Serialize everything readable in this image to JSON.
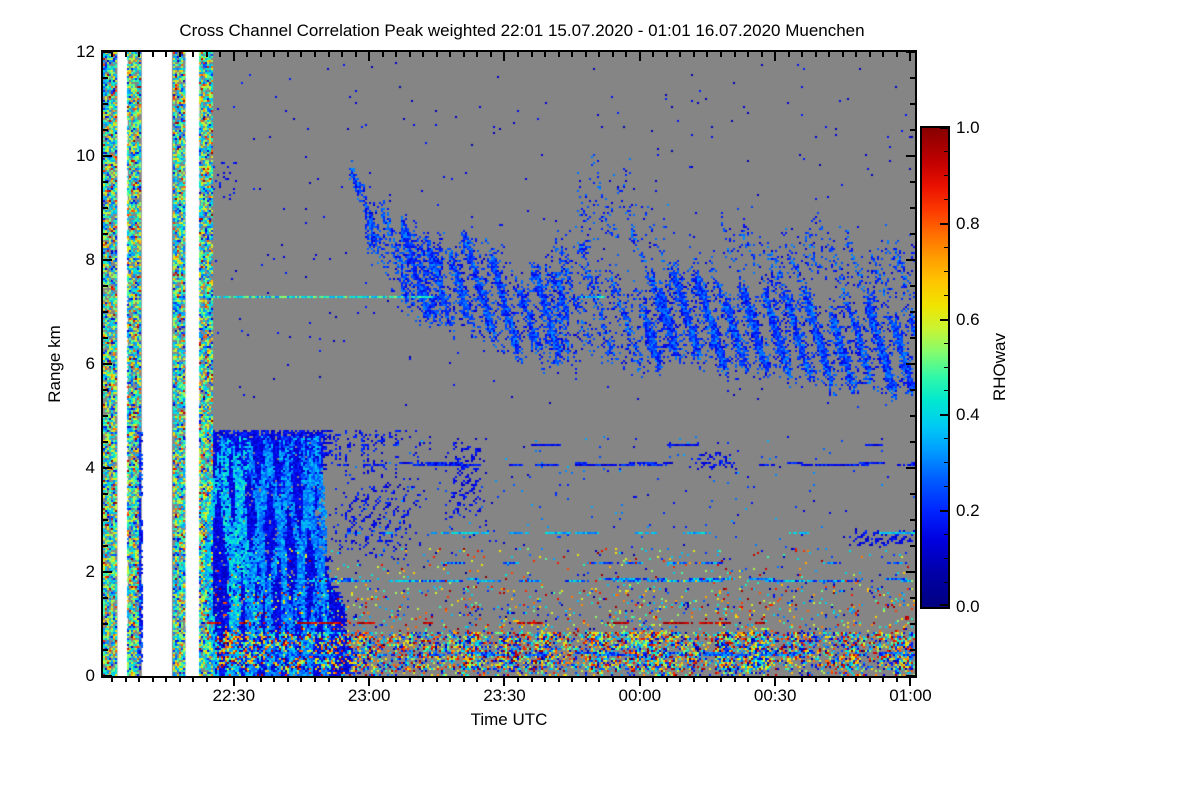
{
  "chart_data": {
    "type": "heatmap",
    "title": "Cross Channel Correlation Peak weighted",
    "time_range": "22:01 15.07.2020 - 01:01 16.07.2020",
    "station": "Muenchen",
    "title_full": "Cross Channel Correlation Peak weighted   22:01 15.07.2020 - 01:01 16.07.2020 Muenchen",
    "xlabel": "Time UTC",
    "ylabel": "Range km",
    "x_axis": {
      "start_minutes_after_2200": 1,
      "end_minutes_after_2200": 181,
      "major_ticks": [
        {
          "label": "22:30",
          "t": 30
        },
        {
          "label": "23:00",
          "t": 60
        },
        {
          "label": "23:30",
          "t": 90
        },
        {
          "label": "00:00",
          "t": 120
        },
        {
          "label": "00:30",
          "t": 150
        },
        {
          "label": "01:00",
          "t": 180
        }
      ],
      "minor_step_minutes": 3
    },
    "y_axis": {
      "range_km": [
        0,
        12
      ],
      "major_ticks": [
        {
          "label": "0",
          "km": 0
        },
        {
          "label": "2",
          "km": 2
        },
        {
          "label": "4",
          "km": 4
        },
        {
          "label": "6",
          "km": 6
        },
        {
          "label": "8",
          "km": 8
        },
        {
          "label": "10",
          "km": 10
        },
        {
          "label": "12",
          "km": 12
        }
      ],
      "minor_step_km": 0.5
    },
    "colorbar": {
      "label": "RHOwav",
      "range": [
        0,
        1
      ],
      "major_ticks": [
        {
          "label": "0.0",
          "v": 0.0
        },
        {
          "label": "0.2",
          "v": 0.2
        },
        {
          "label": "0.4",
          "v": 0.4
        },
        {
          "label": "0.6",
          "v": 0.6
        },
        {
          "label": "0.8",
          "v": 0.8
        },
        {
          "label": "1.0",
          "v": 1.0
        }
      ],
      "minor_step": 0.05,
      "colormap_stops": [
        [
          0.0,
          "#000080"
        ],
        [
          0.07,
          "#0000a8"
        ],
        [
          0.14,
          "#0000e0"
        ],
        [
          0.2,
          "#0024ff"
        ],
        [
          0.27,
          "#0060ff"
        ],
        [
          0.33,
          "#00a0ff"
        ],
        [
          0.38,
          "#00ccf2"
        ],
        [
          0.43,
          "#00e8d0"
        ],
        [
          0.48,
          "#30f8a8"
        ],
        [
          0.53,
          "#80fc70"
        ],
        [
          0.58,
          "#c8f434"
        ],
        [
          0.63,
          "#f0e400"
        ],
        [
          0.68,
          "#ffc400"
        ],
        [
          0.73,
          "#ff9c00"
        ],
        [
          0.78,
          "#ff6c00"
        ],
        [
          0.83,
          "#fc3800"
        ],
        [
          0.88,
          "#e81000"
        ],
        [
          0.93,
          "#c00000"
        ],
        [
          1.0,
          "#870000"
        ]
      ]
    },
    "no_data_color": "#858585",
    "gap_color": "#ffffff",
    "features": [
      {
        "kind": "stripe",
        "t0": 1.2,
        "t1": 4.2
      },
      {
        "kind": "gap",
        "t0": 4.2,
        "t1": 6.5
      },
      {
        "kind": "stripe",
        "t0": 6.5,
        "t1": 9.6
      },
      {
        "kind": "gap",
        "t0": 9.6,
        "t1": 16.3
      },
      {
        "kind": "stripe",
        "t0": 16.3,
        "t1": 19.3
      },
      {
        "kind": "gap",
        "t0": 19.3,
        "t1": 22.4
      },
      {
        "kind": "stripe",
        "t0": 22.4,
        "t1": 25.2
      },
      {
        "kind": "vline",
        "t": 8.8,
        "km0": 0.1,
        "km1": 4.7,
        "v0": 0.12,
        "v1": 0.3
      },
      {
        "kind": "speckle",
        "t0": 26,
        "t1": 181,
        "km0": 5.2,
        "km1": 11.8,
        "d": 0.004,
        "v0": 0.08,
        "v1": 0.2
      },
      {
        "kind": "speckle",
        "t0": 25.5,
        "t1": 30.5,
        "km0": 9.2,
        "km1": 9.9,
        "d": 0.09,
        "v0": 0.1,
        "v1": 0.2
      },
      {
        "kind": "speckle",
        "t0": 52,
        "t1": 181,
        "km0": 2.3,
        "km1": 4.6,
        "d": 0.012,
        "v0": 0.1,
        "v1": 0.35
      },
      {
        "kind": "upper_cloud",
        "v0": 0.1,
        "v1": 0.27,
        "masses": [
          {
            "t0": 55.5,
            "t1": 64,
            "top0": 9.6,
            "top1": 8.9,
            "bot0": 9.4,
            "bot1": 7.9,
            "d": 0.85
          },
          {
            "t0": 59,
            "t1": 76,
            "top0": 9.15,
            "top1": 8.35,
            "bot0": 8.05,
            "bot1": 6.7,
            "d": 0.5
          },
          {
            "t0": 67,
            "t1": 104,
            "top0": 8.75,
            "top1": 7.7,
            "bot0": 7.05,
            "bot1": 5.9,
            "d": 0.8
          },
          {
            "t0": 99,
            "t1": 127,
            "top0": 8.45,
            "top1": 7.55,
            "bot0": 6.15,
            "bot1": 5.95,
            "d": 0.42
          },
          {
            "t0": 121,
            "t1": 181,
            "top0": 7.95,
            "top1": 7.05,
            "bot0": 6.1,
            "bot1": 5.35,
            "d": 0.85
          },
          {
            "t0": 106,
            "t1": 126,
            "top0": 10.15,
            "top1": 9.0,
            "bot0": 8.55,
            "bot1": 7.6,
            "d": 0.16
          },
          {
            "t0": 138,
            "t1": 181,
            "top0": 8.75,
            "top1": 8.3,
            "bot0": 7.95,
            "bot1": 7.1,
            "d": 0.3
          }
        ]
      },
      {
        "kind": "hline",
        "km": 7.32,
        "t0": 23.5,
        "t1": 74,
        "d": 0.72,
        "v0": 0.3,
        "v1": 0.55,
        "th": 2
      },
      {
        "kind": "hline",
        "km": 7.32,
        "t0": 107,
        "t1": 112,
        "d": 0.8,
        "v0": 0.3,
        "v1": 0.5,
        "th": 2
      },
      {
        "kind": "lower_cloud",
        "t0": 25.2,
        "t1": 52,
        "km0": 0.05,
        "km1": 4.75
      },
      {
        "kind": "spikeband",
        "t0": 25.2,
        "t1": 74,
        "km0": 3.85,
        "km1": 4.75,
        "d0": 0.75,
        "d1": 0.12,
        "v0": 0.1,
        "v1": 0.22
      },
      {
        "kind": "blob",
        "t0": 51,
        "t1": 71,
        "km0": 2.2,
        "km1": 3.85,
        "d": 0.4,
        "v0": 0.1,
        "v1": 0.22
      },
      {
        "kind": "blob",
        "t0": 77,
        "t1": 86,
        "km0": 2.9,
        "km1": 4.65,
        "d": 0.55,
        "v0": 0.1,
        "v1": 0.2
      },
      {
        "kind": "blob",
        "t0": 131,
        "t1": 142,
        "km0": 3.95,
        "km1": 4.4,
        "d": 0.55,
        "v0": 0.1,
        "v1": 0.2
      },
      {
        "kind": "blob",
        "t0": 165,
        "t1": 181,
        "km0": 2.5,
        "km1": 2.85,
        "d": 0.8,
        "v0": 0.1,
        "v1": 0.2
      },
      {
        "kind": "bottom_band",
        "t0": 26,
        "t1": 181,
        "km_top": 2.5
      },
      {
        "kind": "hline",
        "km": 4.48,
        "t0": 52,
        "t1": 181,
        "d": 0.2,
        "v0": 0.1,
        "v1": 0.2,
        "th": 2
      },
      {
        "kind": "hline",
        "km": 4.06,
        "t0": 40,
        "t1": 181,
        "d": 0.5,
        "v0": 0.1,
        "v1": 0.25,
        "th": 3
      },
      {
        "kind": "hline",
        "km": 2.77,
        "t0": 55,
        "t1": 181,
        "d": 0.28,
        "v0": 0.28,
        "v1": 0.45,
        "th": 2
      },
      {
        "kind": "hline",
        "km": 2.21,
        "t0": 57,
        "t1": 181,
        "d": 0.3,
        "v0": 0.15,
        "v1": 0.4,
        "th": 2,
        "warm": 0.05
      },
      {
        "kind": "hline",
        "km": 1.85,
        "t0": 31,
        "t1": 181,
        "d": 0.68,
        "v0": 0.15,
        "v1": 0.45,
        "th": 3,
        "warm": 0.06
      },
      {
        "kind": "hline",
        "km": 0.42,
        "t0": 27,
        "t1": 181,
        "d": 0.5,
        "v0": 0.15,
        "v1": 0.38,
        "th": 3
      },
      {
        "kind": "hline",
        "km": 1.04,
        "t0": 24,
        "t1": 154,
        "d": 0.38,
        "v0": 0.86,
        "v1": 1.0,
        "th": 2
      }
    ]
  }
}
